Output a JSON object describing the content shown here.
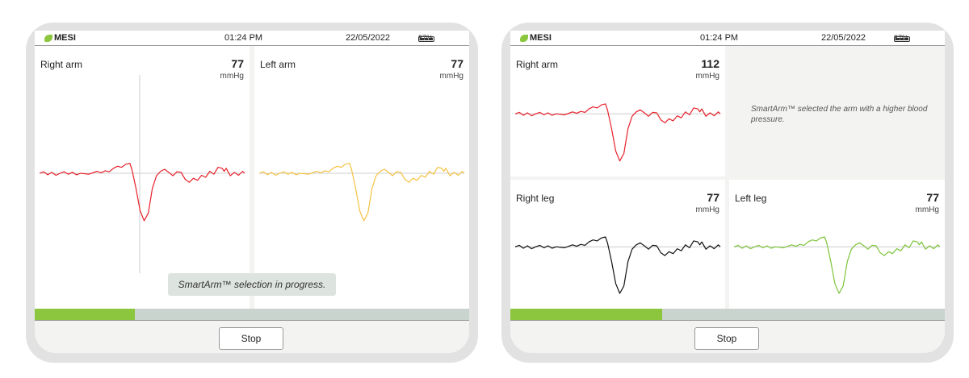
{
  "header": {
    "brand": "MESI",
    "time": "01:24 PM",
    "date": "22/05/2022",
    "battery": "87%"
  },
  "colors": {
    "accent": "#8cc63f",
    "right_arm": "#e8202a",
    "left_arm": "#f5c242",
    "right_leg": "#111111",
    "left_leg": "#7dc43a"
  },
  "screen1": {
    "panels": [
      {
        "label": "Right arm",
        "value": "77",
        "unit": "mmHg",
        "color": "#e8202a"
      },
      {
        "label": "Left arm",
        "value": "77",
        "unit": "mmHg",
        "color": "#f5c242"
      }
    ],
    "toast": "SmartArm™ selection in progress.",
    "progress_percent": 23,
    "stop_label": "Stop"
  },
  "screen2": {
    "panels": [
      {
        "label": "Right arm",
        "value": "112",
        "unit": "mmHg",
        "color": "#e8202a"
      },
      {
        "label": "Right leg",
        "value": "77",
        "unit": "mmHg",
        "color": "#111111"
      },
      {
        "label": "Left leg",
        "value": "77",
        "unit": "mmHg",
        "color": "#7dc43a"
      }
    ],
    "message": "SmartArm™ selected the arm with a higher blood pressure.",
    "progress_percent": 35,
    "stop_label": "Stop"
  }
}
